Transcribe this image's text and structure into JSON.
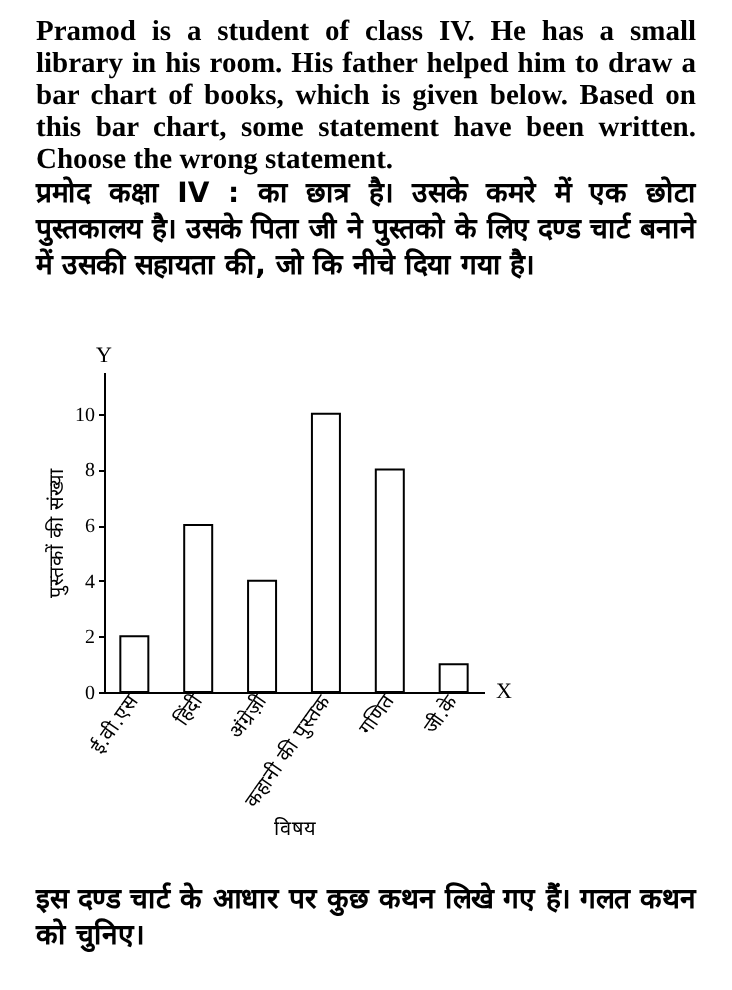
{
  "chart_data": {
    "type": "bar",
    "title": "Pramod is a student of class IV. He has a small library in his room. His father helped him to draw a bar chart of books, which is given below. Based on this bar chart, some statement have been written. Choose the wrong statement.",
    "subtitle": "प्रमोद कक्षा IV : का छात्र है। उसके कमरे में एक छोटा पुस्तकालय है। उसके पिता जी ने पुस्तको के लिए दण्ड चार्ट बनाने में उसकी सहायता की, जो कि नीचे दिया गया है।",
    "xlabel": "विषय",
    "ylabel": "पुस्तकों की संख्या",
    "categories": [
      "ई.वी.एस",
      "हिंदी",
      "अंग्रेज़ी",
      "कहानी की पुस्तक",
      "गणित",
      "जी.के"
    ],
    "values": [
      2,
      6,
      4,
      10,
      8,
      1
    ],
    "color": "#ffffff",
    "ylim": [
      0,
      11.5
    ],
    "yticks": [
      0,
      2,
      4,
      6,
      8,
      10
    ],
    "grid": false,
    "annotations": [
      "Y",
      "X",
      "इस दण्ड चार्ट के आधार पर कुछ कथन लिखे गए हैं। गलत कथन को चुनिए।"
    ]
  }
}
